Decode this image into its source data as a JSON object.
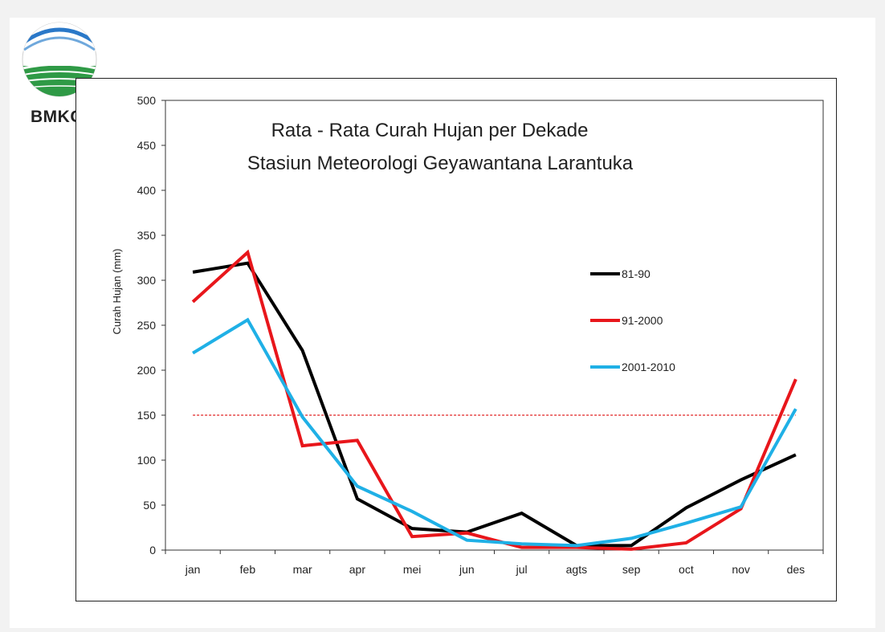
{
  "logo": {
    "text": "BMKG",
    "icon": "bmkg-globe-logo"
  },
  "chart_data": {
    "type": "line",
    "title": [
      "Rata - Rata Curah Hujan per Dekade",
      "Stasiun Meteorologi Geyawantana Larantuka"
    ],
    "xlabel": "",
    "ylabel": "Curah Hujan (mm)",
    "ylim": [
      0,
      500
    ],
    "yticks": [
      0,
      50,
      100,
      150,
      200,
      250,
      300,
      350,
      400,
      450,
      500
    ],
    "categories": [
      "jan",
      "feb",
      "mar",
      "apr",
      "mei",
      "jun",
      "jul",
      "agts",
      "sep",
      "oct",
      "nov",
      "des"
    ],
    "grid": false,
    "legend_position": "right",
    "reference_line": {
      "value": 150,
      "color": "#e02020",
      "style": "dashed"
    },
    "series": [
      {
        "name": "81-90",
        "color": "#000000",
        "values": [
          309,
          319,
          222,
          57,
          24,
          20,
          41,
          5,
          5,
          47,
          78,
          106
        ]
      },
      {
        "name": "91-2000",
        "color": "#e8161b",
        "values": [
          276,
          331,
          116,
          122,
          15,
          19,
          3,
          3,
          1,
          8,
          46,
          190
        ]
      },
      {
        "name": "2001-2010",
        "color": "#1fb0e6",
        "values": [
          219,
          256,
          148,
          71,
          43,
          11,
          7,
          5,
          13,
          30,
          48,
          157
        ]
      }
    ]
  }
}
